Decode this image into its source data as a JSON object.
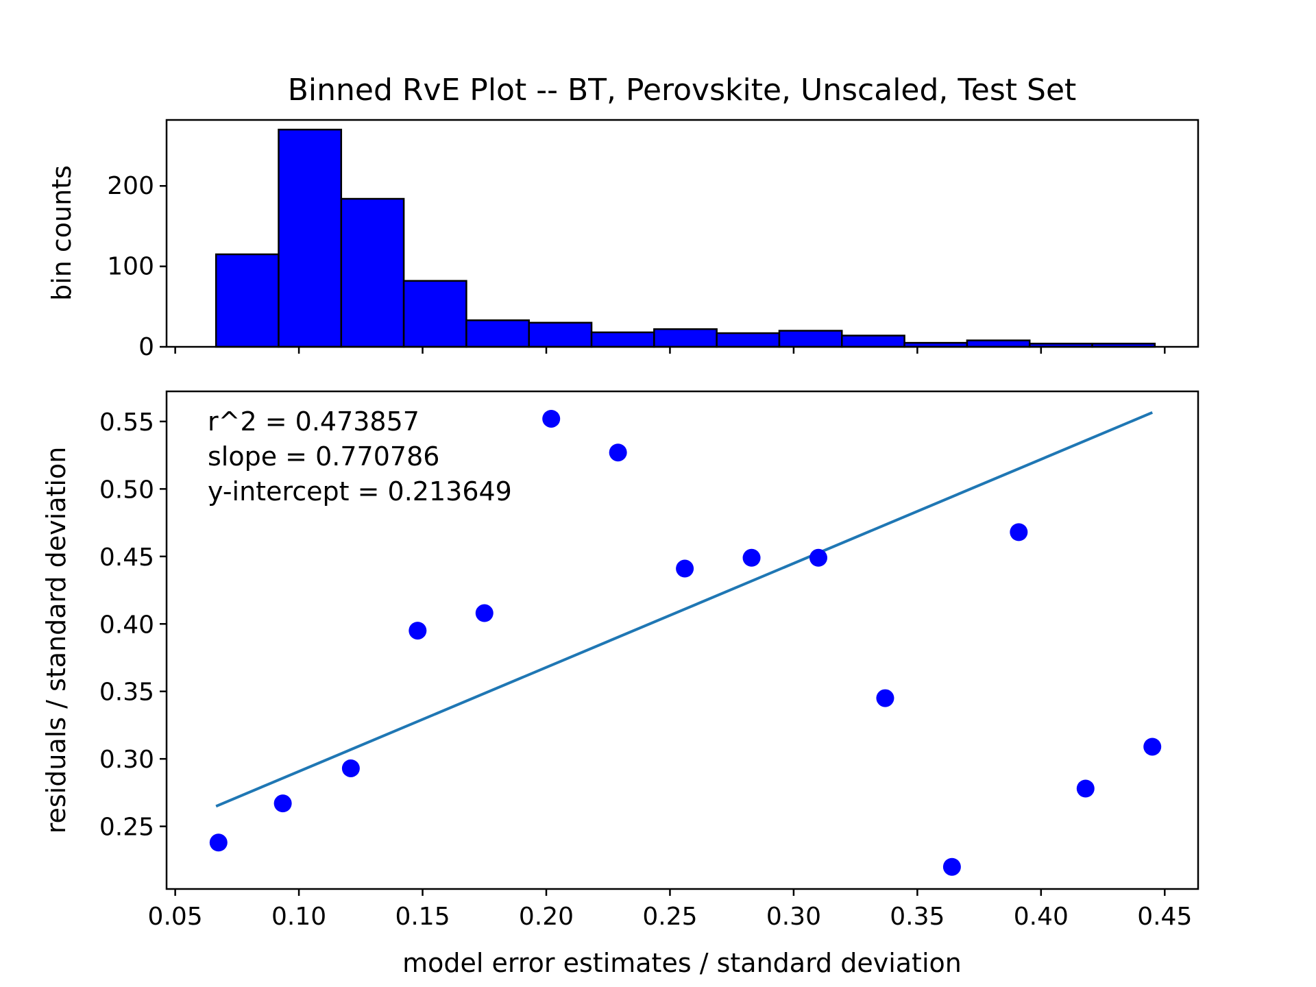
{
  "title": "Binned RvE Plot -- BT, Perovskite, Unscaled, Test Set",
  "chart_data": [
    {
      "type": "bar",
      "panel": "histogram",
      "ylabel": "bin counts",
      "xlim": [
        0.0465,
        0.4635
      ],
      "ylim": [
        0,
        282
      ],
      "yticks": [
        0,
        100,
        200
      ],
      "bin_edges": [
        0.0665,
        0.0918,
        0.1171,
        0.1424,
        0.1677,
        0.193,
        0.2183,
        0.2436,
        0.2689,
        0.2942,
        0.3195,
        0.3448,
        0.3701,
        0.3954,
        0.4207,
        0.446
      ],
      "counts": [
        115,
        270,
        184,
        82,
        33,
        30,
        18,
        22,
        17,
        20,
        14,
        5,
        8,
        4,
        4
      ],
      "bar_color": "#0000ff",
      "edge_color": "#000000"
    },
    {
      "type": "scatter",
      "panel": "residuals-vs-error",
      "xlabel": "model error estimates / standard deviation",
      "ylabel": "residuals / standard deviation",
      "xlim": [
        0.0465,
        0.4635
      ],
      "ylim": [
        0.2036,
        0.5723
      ],
      "xticks": [
        "0.05",
        "0.10",
        "0.15",
        "0.20",
        "0.25",
        "0.30",
        "0.35",
        "0.40",
        "0.45"
      ],
      "yticks": [
        "0.25",
        "0.30",
        "0.35",
        "0.40",
        "0.45",
        "0.50",
        "0.55"
      ],
      "points": [
        {
          "x": 0.0675,
          "y": 0.238
        },
        {
          "x": 0.0935,
          "y": 0.267
        },
        {
          "x": 0.121,
          "y": 0.293
        },
        {
          "x": 0.148,
          "y": 0.395
        },
        {
          "x": 0.175,
          "y": 0.408
        },
        {
          "x": 0.202,
          "y": 0.552
        },
        {
          "x": 0.229,
          "y": 0.527
        },
        {
          "x": 0.256,
          "y": 0.441
        },
        {
          "x": 0.283,
          "y": 0.449
        },
        {
          "x": 0.31,
          "y": 0.449
        },
        {
          "x": 0.337,
          "y": 0.345
        },
        {
          "x": 0.364,
          "y": 0.22
        },
        {
          "x": 0.391,
          "y": 0.468
        },
        {
          "x": 0.418,
          "y": 0.278
        },
        {
          "x": 0.445,
          "y": 0.309
        }
      ],
      "point_color": "#0000ff",
      "fit_line": {
        "x": [
          0.0665,
          0.445
        ],
        "slope": 0.770786,
        "intercept": 0.213649,
        "color": "#1f77b4"
      },
      "annotations": [
        "r^2 = 0.473857",
        "slope = 0.770786",
        "y-intercept = 0.213649"
      ]
    }
  ]
}
